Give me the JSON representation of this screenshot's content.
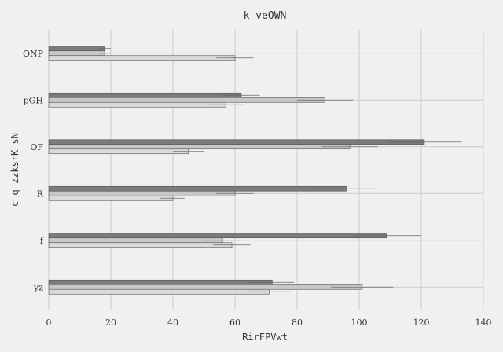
{
  "chart_data": {
    "type": "bar",
    "orientation": "horizontal",
    "title": "k veOWN",
    "xlabel": "RirFPVwt",
    "ylabel": "c q zzksrK sN",
    "xlim": [
      0,
      140
    ],
    "xticks": [
      0,
      20,
      40,
      60,
      80,
      100,
      120,
      140
    ],
    "grid": true,
    "categories": [
      "yz",
      "f",
      "R",
      "OF",
      "pGH",
      "ONP"
    ],
    "series": [
      {
        "color": "#7b7b7b",
        "values": [
          72,
          109,
          96,
          121,
          62,
          18
        ],
        "errors": [
          7,
          11,
          10,
          12,
          6,
          2
        ]
      },
      {
        "color": "#c8c8c8",
        "values": [
          101,
          56,
          60,
          97,
          89,
          18
        ],
        "errors": [
          10,
          6,
          6,
          9,
          9,
          2
        ]
      },
      {
        "color": "#dadada",
        "values": [
          71,
          59,
          40,
          45,
          57,
          60
        ],
        "errors": [
          7,
          6,
          4,
          5,
          6,
          6
        ]
      }
    ]
  }
}
